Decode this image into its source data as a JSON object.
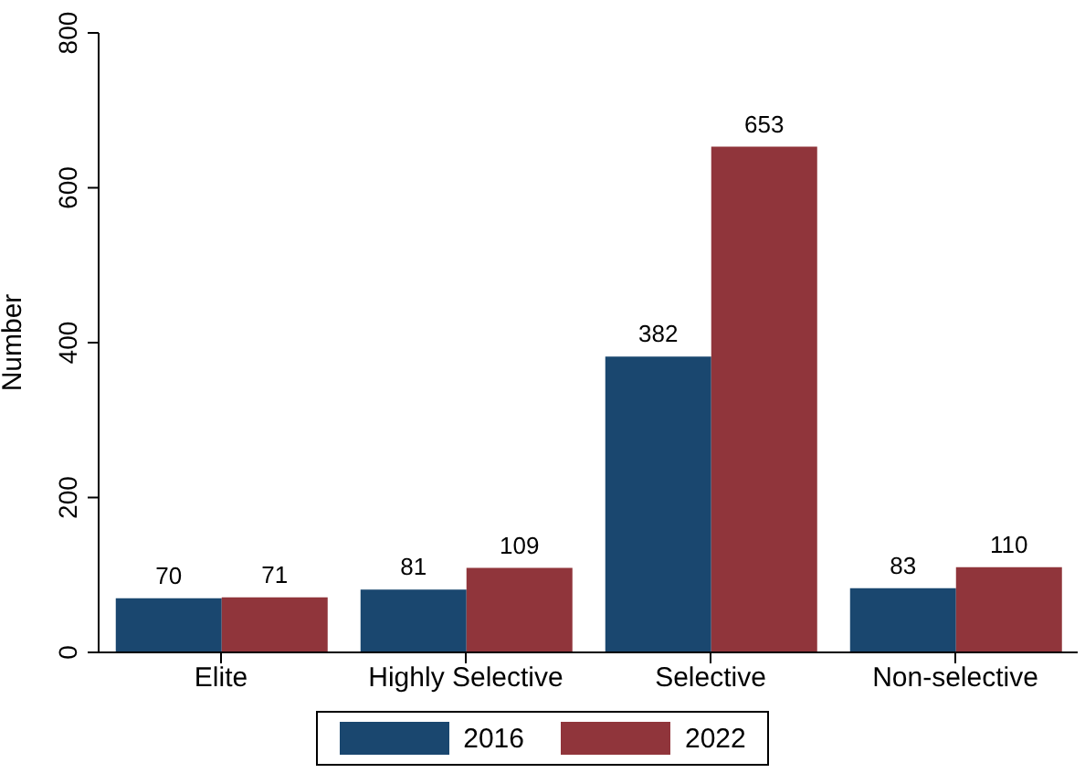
{
  "chart_data": {
    "type": "bar",
    "ylabel": "Number",
    "categories": [
      "Elite",
      "Highly Selective",
      "Selective",
      "Non-selective"
    ],
    "series": [
      {
        "name": "2016",
        "color": "#1a476f",
        "values": [
          70,
          81,
          382,
          83
        ]
      },
      {
        "name": "2022",
        "color": "#90353b",
        "values": [
          71,
          109,
          653,
          110
        ]
      }
    ],
    "ylim": [
      0,
      800
    ],
    "yticks": [
      0,
      200,
      400,
      600,
      800
    ],
    "data_labels": true,
    "legend": "bottom",
    "grid": false
  }
}
